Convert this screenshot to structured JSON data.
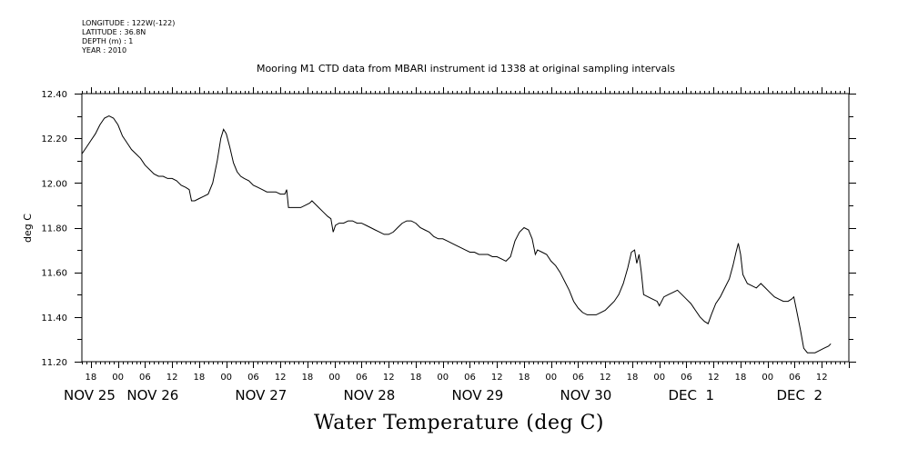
{
  "header": {
    "meta_lines": [
      "LONGITUDE : 122W(-122)",
      "LATITUDE : 36.8N",
      "DEPTH (m) : 1",
      "YEAR : 2010"
    ]
  },
  "bottom_title": "Water Temperature (deg C)",
  "chart_data": {
    "type": "line",
    "title": "Mooring M1 CTD data from MBARI instrument id 1338 at original sampling intervals",
    "ylabel": "deg C",
    "xlabel": "",
    "ylim": [
      11.2,
      12.4
    ],
    "xlim_hours": [
      16,
      186
    ],
    "yticks": [
      11.2,
      11.4,
      11.6,
      11.8,
      12.0,
      12.2,
      12.4
    ],
    "ytick_labels": [
      "11.20",
      "11.40",
      "11.60",
      "11.80",
      "12.00",
      "12.20",
      "12.40"
    ],
    "hour_ticks": [
      18,
      24,
      30,
      36,
      42,
      48,
      54,
      60,
      66,
      72,
      78,
      84,
      90,
      96,
      102,
      108,
      114,
      120,
      126,
      132,
      138,
      144,
      150,
      156,
      162,
      168,
      174,
      180
    ],
    "hour_tick_labels": [
      "18",
      "00",
      "06",
      "12",
      "18",
      "00",
      "06",
      "12",
      "18",
      "00",
      "06",
      "12",
      "18",
      "00",
      "06",
      "12",
      "18",
      "00",
      "06",
      "12",
      "18",
      "00",
      "06",
      "12",
      "18",
      "00",
      "06",
      "12"
    ],
    "day_labels": [
      {
        "hour": 16,
        "label": "NOV 25"
      },
      {
        "hour": 30,
        "label": "NOV 26"
      },
      {
        "hour": 54,
        "label": "NOV 27"
      },
      {
        "hour": 78,
        "label": "NOV 28"
      },
      {
        "hour": 102,
        "label": "NOV 29"
      },
      {
        "hour": 126,
        "label": "NOV 30"
      },
      {
        "hour": 150,
        "label": "DEC  1"
      },
      {
        "hour": 174,
        "label": "DEC  2"
      }
    ],
    "series": [
      {
        "points": [
          [
            16.0,
            12.13
          ],
          [
            17.0,
            12.16
          ],
          [
            18.0,
            12.19
          ],
          [
            19.0,
            12.22
          ],
          [
            20.0,
            12.26
          ],
          [
            21.0,
            12.29
          ],
          [
            22.0,
            12.3
          ],
          [
            23.0,
            12.29
          ],
          [
            24.0,
            12.26
          ],
          [
            25.0,
            12.21
          ],
          [
            26.0,
            12.18
          ],
          [
            27.0,
            12.15
          ],
          [
            28.0,
            12.13
          ],
          [
            29.0,
            12.11
          ],
          [
            30.0,
            12.08
          ],
          [
            31.0,
            12.06
          ],
          [
            32.0,
            12.04
          ],
          [
            33.0,
            12.03
          ],
          [
            34.0,
            12.03
          ],
          [
            35.0,
            12.02
          ],
          [
            36.0,
            12.02
          ],
          [
            37.0,
            12.01
          ],
          [
            38.0,
            11.99
          ],
          [
            39.0,
            11.98
          ],
          [
            39.8,
            11.97
          ],
          [
            40.3,
            11.92
          ],
          [
            41.0,
            11.92
          ],
          [
            42.0,
            11.93
          ],
          [
            43.0,
            11.94
          ],
          [
            44.0,
            11.95
          ],
          [
            45.0,
            12.0
          ],
          [
            46.0,
            12.1
          ],
          [
            46.8,
            12.2
          ],
          [
            47.4,
            12.24
          ],
          [
            48.0,
            12.22
          ],
          [
            48.8,
            12.16
          ],
          [
            49.6,
            12.09
          ],
          [
            50.4,
            12.05
          ],
          [
            51.2,
            12.03
          ],
          [
            52.0,
            12.02
          ],
          [
            53.0,
            12.01
          ],
          [
            54.0,
            11.99
          ],
          [
            55.0,
            11.98
          ],
          [
            56.0,
            11.97
          ],
          [
            57.0,
            11.96
          ],
          [
            58.0,
            11.96
          ],
          [
            59.0,
            11.96
          ],
          [
            60.0,
            11.95
          ],
          [
            61.0,
            11.95
          ],
          [
            61.4,
            11.97
          ],
          [
            61.8,
            11.89
          ],
          [
            62.5,
            11.89
          ],
          [
            63.5,
            11.89
          ],
          [
            64.5,
            11.89
          ],
          [
            65.5,
            11.9
          ],
          [
            66.5,
            11.91
          ],
          [
            67.0,
            11.92
          ],
          [
            67.5,
            11.91
          ],
          [
            68.5,
            11.89
          ],
          [
            69.5,
            11.87
          ],
          [
            70.5,
            11.85
          ],
          [
            71.2,
            11.84
          ],
          [
            71.7,
            11.78
          ],
          [
            72.2,
            11.81
          ],
          [
            73.0,
            11.82
          ],
          [
            74.0,
            11.82
          ],
          [
            75.0,
            11.83
          ],
          [
            76.0,
            11.83
          ],
          [
            77.0,
            11.82
          ],
          [
            78.0,
            11.82
          ],
          [
            79.0,
            11.81
          ],
          [
            80.0,
            11.8
          ],
          [
            81.0,
            11.79
          ],
          [
            82.0,
            11.78
          ],
          [
            83.0,
            11.77
          ],
          [
            84.0,
            11.77
          ],
          [
            85.0,
            11.78
          ],
          [
            86.0,
            11.8
          ],
          [
            87.0,
            11.82
          ],
          [
            88.0,
            11.83
          ],
          [
            89.0,
            11.83
          ],
          [
            90.0,
            11.82
          ],
          [
            91.0,
            11.8
          ],
          [
            92.0,
            11.79
          ],
          [
            93.0,
            11.78
          ],
          [
            94.0,
            11.76
          ],
          [
            95.0,
            11.75
          ],
          [
            96.0,
            11.75
          ],
          [
            97.0,
            11.74
          ],
          [
            98.0,
            11.73
          ],
          [
            99.0,
            11.72
          ],
          [
            100.0,
            11.71
          ],
          [
            101.0,
            11.7
          ],
          [
            102.0,
            11.69
          ],
          [
            103.0,
            11.69
          ],
          [
            104.0,
            11.68
          ],
          [
            105.0,
            11.68
          ],
          [
            106.0,
            11.68
          ],
          [
            107.0,
            11.67
          ],
          [
            108.0,
            11.67
          ],
          [
            109.0,
            11.66
          ],
          [
            110.0,
            11.65
          ],
          [
            111.0,
            11.67
          ],
          [
            112.0,
            11.74
          ],
          [
            113.0,
            11.78
          ],
          [
            114.0,
            11.8
          ],
          [
            115.0,
            11.79
          ],
          [
            115.8,
            11.75
          ],
          [
            116.5,
            11.68
          ],
          [
            117.0,
            11.7
          ],
          [
            118.0,
            11.69
          ],
          [
            119.0,
            11.68
          ],
          [
            120.0,
            11.65
          ],
          [
            121.0,
            11.63
          ],
          [
            122.0,
            11.6
          ],
          [
            123.0,
            11.56
          ],
          [
            124.0,
            11.52
          ],
          [
            125.0,
            11.47
          ],
          [
            126.0,
            11.44
          ],
          [
            127.0,
            11.42
          ],
          [
            128.0,
            11.41
          ],
          [
            129.0,
            11.41
          ],
          [
            130.0,
            11.41
          ],
          [
            131.0,
            11.42
          ],
          [
            132.0,
            11.43
          ],
          [
            133.0,
            11.45
          ],
          [
            134.0,
            11.47
          ],
          [
            135.0,
            11.5
          ],
          [
            136.0,
            11.55
          ],
          [
            137.0,
            11.62
          ],
          [
            137.8,
            11.69
          ],
          [
            138.5,
            11.7
          ],
          [
            139.0,
            11.64
          ],
          [
            139.5,
            11.68
          ],
          [
            140.0,
            11.6
          ],
          [
            140.5,
            11.5
          ],
          [
            141.5,
            11.49
          ],
          [
            142.5,
            11.48
          ],
          [
            143.5,
            11.47
          ],
          [
            144.0,
            11.45
          ],
          [
            145.0,
            11.49
          ],
          [
            146.0,
            11.5
          ],
          [
            147.0,
            11.51
          ],
          [
            148.0,
            11.52
          ],
          [
            149.0,
            11.5
          ],
          [
            150.0,
            11.48
          ],
          [
            151.0,
            11.46
          ],
          [
            152.0,
            11.43
          ],
          [
            153.0,
            11.4
          ],
          [
            154.0,
            11.38
          ],
          [
            154.8,
            11.37
          ],
          [
            155.5,
            11.41
          ],
          [
            156.5,
            11.46
          ],
          [
            157.5,
            11.49
          ],
          [
            158.5,
            11.53
          ],
          [
            159.5,
            11.57
          ],
          [
            160.3,
            11.63
          ],
          [
            161.0,
            11.69
          ],
          [
            161.5,
            11.73
          ],
          [
            162.0,
            11.68
          ],
          [
            162.5,
            11.59
          ],
          [
            163.5,
            11.55
          ],
          [
            164.5,
            11.54
          ],
          [
            165.5,
            11.53
          ],
          [
            166.5,
            11.55
          ],
          [
            167.5,
            11.53
          ],
          [
            168.5,
            11.51
          ],
          [
            169.5,
            11.49
          ],
          [
            170.5,
            11.48
          ],
          [
            171.5,
            11.47
          ],
          [
            172.5,
            11.47
          ],
          [
            173.3,
            11.48
          ],
          [
            173.8,
            11.49
          ],
          [
            174.5,
            11.42
          ],
          [
            175.3,
            11.34
          ],
          [
            176.0,
            11.26
          ],
          [
            176.8,
            11.24
          ],
          [
            177.5,
            11.24
          ],
          [
            178.5,
            11.24
          ],
          [
            179.5,
            11.25
          ],
          [
            180.5,
            11.26
          ],
          [
            181.5,
            11.27
          ],
          [
            182.0,
            11.28
          ]
        ]
      }
    ]
  }
}
